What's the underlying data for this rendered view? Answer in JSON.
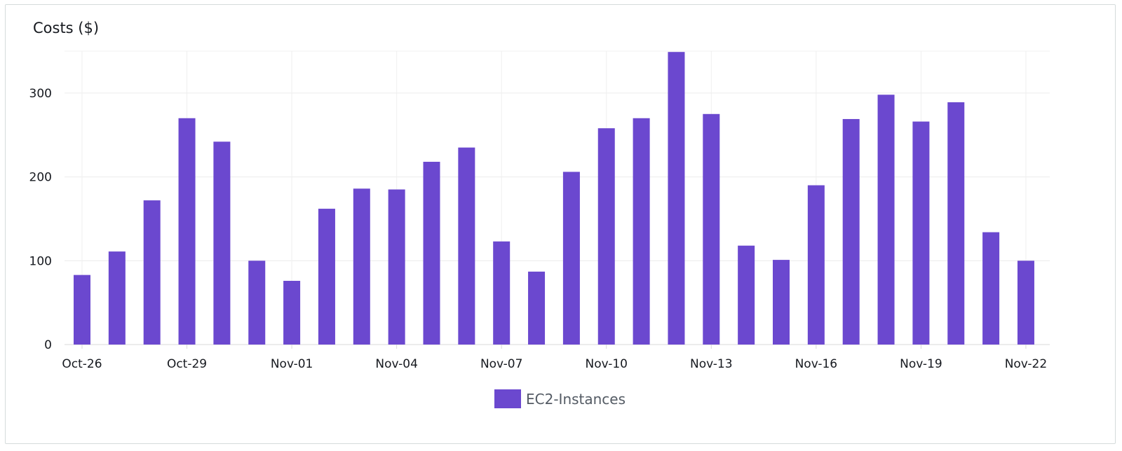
{
  "chart_data": {
    "type": "bar",
    "ylabel": "Costs ($)",
    "xlabel": "",
    "ylim": [
      0,
      350
    ],
    "yticks": [
      0,
      100,
      200,
      300
    ],
    "grid": true,
    "legend_position": "bottom-center",
    "categories": [
      "Oct-26",
      "Oct-27",
      "Oct-28",
      "Oct-29",
      "Oct-30",
      "Oct-31",
      "Nov-01",
      "Nov-02",
      "Nov-03",
      "Nov-04",
      "Nov-05",
      "Nov-06",
      "Nov-07",
      "Nov-08",
      "Nov-09",
      "Nov-10",
      "Nov-11",
      "Nov-12",
      "Nov-13",
      "Nov-14",
      "Nov-15",
      "Nov-16",
      "Nov-17",
      "Nov-18",
      "Nov-19",
      "Nov-20",
      "Nov-21",
      "Nov-22"
    ],
    "shown_xtick_labels": [
      "Oct-26",
      "Oct-29",
      "Nov-01",
      "Nov-04",
      "Nov-07",
      "Nov-10",
      "Nov-13",
      "Nov-16",
      "Nov-19",
      "Nov-22"
    ],
    "series": [
      {
        "name": "EC2-Instances",
        "color": "#6b48cf",
        "values": [
          83,
          111,
          172,
          270,
          242,
          100,
          76,
          162,
          186,
          185,
          218,
          235,
          123,
          87,
          206,
          258,
          270,
          349,
          275,
          118,
          101,
          190,
          269,
          298,
          266,
          289,
          134,
          100
        ]
      }
    ]
  }
}
